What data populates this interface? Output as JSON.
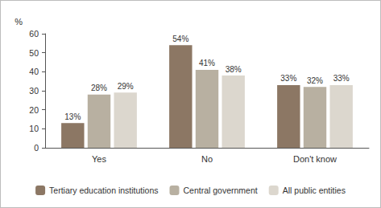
{
  "chart_data": {
    "type": "bar",
    "ylabel": "%",
    "categories": [
      "Yes",
      "No",
      "Don't know"
    ],
    "series": [
      {
        "name": "Tertiary education institutions",
        "color": "#8c7764",
        "values": [
          13,
          54,
          33
        ],
        "value_labels": [
          "13%",
          "54%",
          "33%"
        ]
      },
      {
        "name": "Central government",
        "color": "#b8b0a1",
        "values": [
          28,
          41,
          32
        ],
        "value_labels": [
          "28%",
          "41%",
          "32%"
        ]
      },
      {
        "name": "All public entities",
        "color": "#dcd7ce",
        "values": [
          29,
          38,
          33
        ],
        "value_labels": [
          "29%",
          "38%",
          "33%"
        ]
      }
    ],
    "ylim": [
      0,
      60
    ],
    "yticks": [
      0,
      10,
      20,
      30,
      40,
      50,
      60
    ],
    "grid": false,
    "legend": "bottom",
    "data_labels": true
  }
}
